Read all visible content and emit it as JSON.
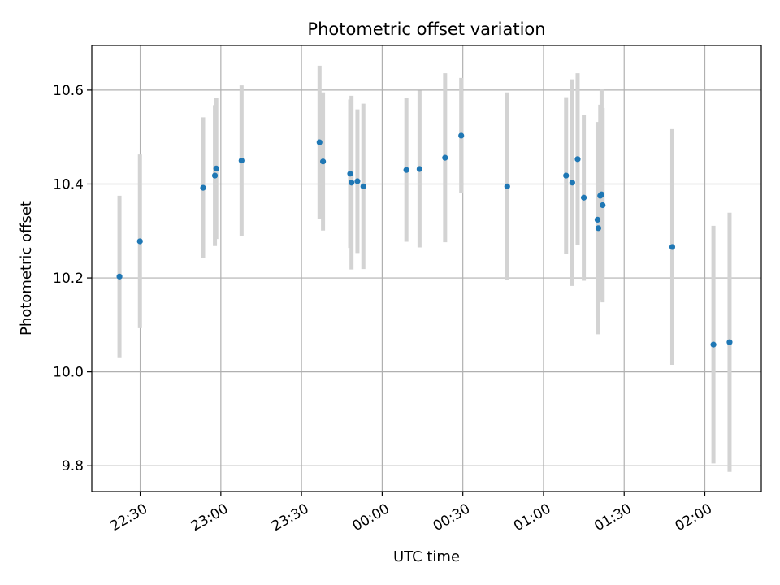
{
  "chart_data": {
    "type": "scatter",
    "title": "Photometric offset variation",
    "xlabel": "UTC time",
    "ylabel": "Photometric offset",
    "x_unit": "UTC time of day (HH:MM:SS), night crossing midnight",
    "xlim": [
      "22:12:00",
      "02:21:00"
    ],
    "ylim": [
      9.745,
      10.695
    ],
    "grid": true,
    "legend": "none",
    "x_ticks": [
      "22:30",
      "23:00",
      "23:30",
      "00:00",
      "00:30",
      "01:00",
      "01:30",
      "02:00"
    ],
    "y_ticks": [
      "9.8",
      "10.0",
      "10.2",
      "10.4",
      "10.6"
    ],
    "colors": {
      "points": "#1f77b4",
      "errorbars": "#d3d3d3"
    },
    "series": [
      {
        "x": [
          "22:22:18",
          "22:29:54",
          "22:53:24",
          "22:57:48",
          "22:58:18",
          "23:07:42",
          "23:36:42",
          "23:38:00",
          "23:48:06",
          "23:48:36",
          "23:50:48",
          "23:53:00",
          "00:09:00",
          "00:13:54",
          "00:23:24",
          "00:29:24",
          "00:46:30",
          "01:08:24",
          "01:10:42",
          "01:12:42",
          "01:15:00",
          "01:20:06",
          "01:20:24",
          "01:21:06",
          "01:21:36",
          "01:22:00",
          "01:47:54",
          "02:03:12",
          "02:09:12"
        ],
        "y": [
          10.203,
          10.278,
          10.392,
          10.418,
          10.433,
          10.45,
          10.489,
          10.448,
          10.422,
          10.403,
          10.406,
          10.395,
          10.43,
          10.432,
          10.456,
          10.503,
          10.395,
          10.418,
          10.403,
          10.453,
          10.371,
          10.324,
          10.306,
          10.375,
          10.378,
          10.355,
          10.266,
          10.058,
          10.063
        ],
        "yerr": [
          0.172,
          0.185,
          0.15,
          0.15,
          0.15,
          0.16,
          0.163,
          0.147,
          0.158,
          0.185,
          0.153,
          0.176,
          0.153,
          0.167,
          0.18,
          0.123,
          0.2,
          0.167,
          0.22,
          0.183,
          0.177,
          0.208,
          0.226,
          0.194,
          0.225,
          0.207,
          0.251,
          0.253,
          0.276
        ]
      }
    ]
  }
}
